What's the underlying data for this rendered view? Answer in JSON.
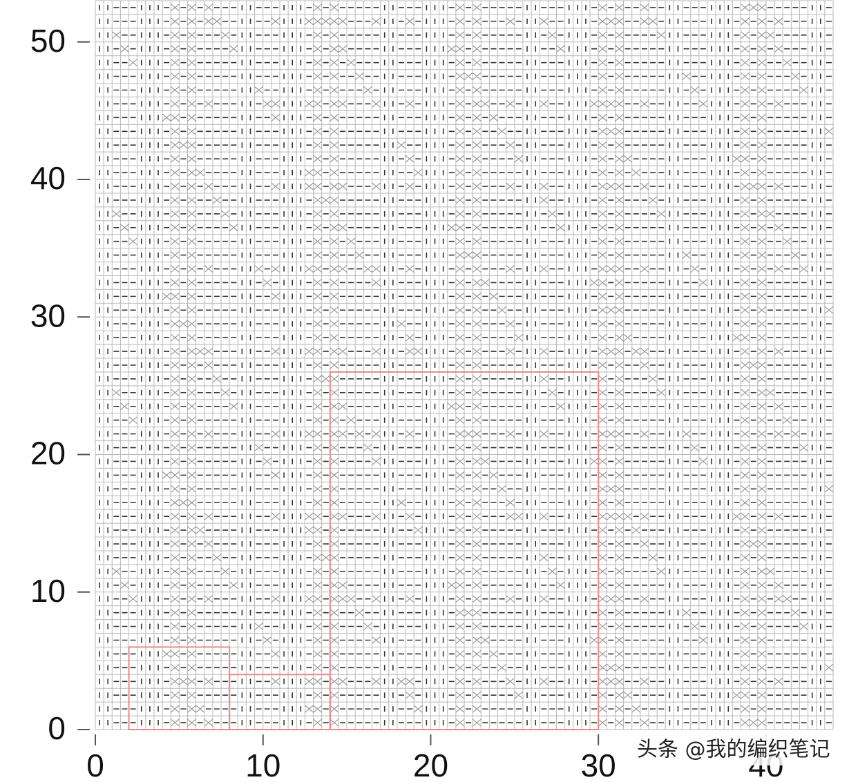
{
  "chart_data": {
    "type": "knitting-grid",
    "xlim": [
      0,
      44
    ],
    "ylim": [
      0,
      53
    ],
    "xticks": [
      0,
      10,
      20,
      30,
      40
    ],
    "yticks": [
      0,
      10,
      20,
      30,
      40,
      50
    ],
    "regions": [
      {
        "x": [
          2,
          8
        ],
        "y": [
          0,
          6
        ]
      },
      {
        "x": [
          8,
          14
        ],
        "y": [
          0,
          4
        ]
      },
      {
        "x": [
          14,
          30
        ],
        "y": [
          0,
          26
        ]
      }
    ],
    "region_color": "#e88a8a"
  },
  "watermark": "头条 @我的编织笔记"
}
